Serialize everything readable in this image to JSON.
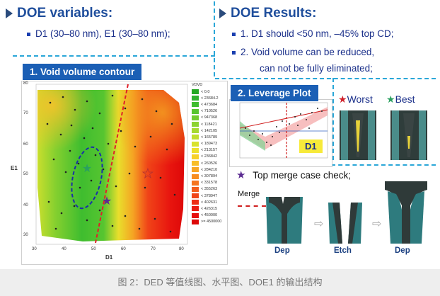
{
  "doe_vars": {
    "title": "DOE variables:",
    "bullet": "D1 (30–80 nm), E1 (30–80 nm);"
  },
  "doe_results": {
    "title": "DOE Results:",
    "line1": "1. D1 should <50 nm, –45% top CD;",
    "line2": "2. Void volume can be reduced,",
    "line3": "can not be fully eliminated;"
  },
  "contour": {
    "tag": "1. Void volume contour",
    "x_label": "D1",
    "y_label": "E1",
    "x_ticks": [
      "30",
      "40",
      "50",
      "60",
      "70",
      "80"
    ],
    "y_ticks": [
      "80",
      "70",
      "60",
      "50",
      "40",
      "30"
    ],
    "legend_title": "VDVD",
    "legend": [
      {
        "label": "< 0.0",
        "color": "#23a823"
      },
      {
        "label": "< 23684.2",
        "color": "#2eb22e"
      },
      {
        "label": "< 473684",
        "color": "#3fbd2f"
      },
      {
        "label": "< 710526",
        "color": "#58c530"
      },
      {
        "label": "< 947368",
        "color": "#71cc30"
      },
      {
        "label": "< 118421",
        "color": "#8cd330"
      },
      {
        "label": "< 142105",
        "color": "#a6d930"
      },
      {
        "label": "< 165789",
        "color": "#c0de2f"
      },
      {
        "label": "< 189473",
        "color": "#d8e22e"
      },
      {
        "label": "< 213157",
        "color": "#ece02c"
      },
      {
        "label": "< 236842",
        "color": "#f6d12a"
      },
      {
        "label": "< 260526",
        "color": "#f8bd27"
      },
      {
        "label": "< 284210",
        "color": "#f8a624"
      },
      {
        "label": "< 307894",
        "color": "#f78e21"
      },
      {
        "label": "< 331578",
        "color": "#f5751e"
      },
      {
        "label": "< 355263",
        "color": "#f35d1b"
      },
      {
        "label": "< 378947",
        "color": "#f04418"
      },
      {
        "label": "< 402631",
        "color": "#ed2e15"
      },
      {
        "label": "< 426315",
        "color": "#ea1c12"
      },
      {
        "label": "< 450000",
        "color": "#e5100f"
      },
      {
        "label": ">= 4500000",
        "color": "#dd0808"
      }
    ]
  },
  "leverage": {
    "tag": "2. Leverage Plot",
    "d1_label": "D1"
  },
  "worst_label": "Worst",
  "best_label": "Best",
  "merge": {
    "title": "Top merge case check;",
    "merge_label": "Merge",
    "step1": "Dep",
    "step2": "Etch",
    "step3": "Dep"
  },
  "caption": "图 2：DED 等值线图、水平图、DOE1 的输出结构",
  "colors": {
    "accent_blue": "#1b5fb5",
    "dash_cyan": "#2aa7d8",
    "worst": "#d0202a",
    "best": "#2aa060",
    "purple": "#5b2b91"
  }
}
